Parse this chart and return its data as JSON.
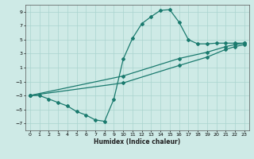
{
  "xlabel": "Humidex (Indice chaleur)",
  "background_color": "#ceeae6",
  "grid_color": "#aad4ce",
  "line_color": "#1a7a6e",
  "xlim": [
    -0.5,
    23.5
  ],
  "ylim": [
    -8,
    10
  ],
  "xticks": [
    0,
    1,
    2,
    3,
    4,
    5,
    6,
    7,
    8,
    9,
    10,
    11,
    12,
    13,
    14,
    15,
    16,
    17,
    18,
    19,
    20,
    21,
    22,
    23
  ],
  "yticks": [
    -7,
    -5,
    -3,
    -1,
    1,
    3,
    5,
    7,
    9
  ],
  "line1_x": [
    0,
    1,
    2,
    3,
    4,
    5,
    6,
    7,
    8,
    9,
    10,
    11,
    12,
    13,
    14,
    15,
    16,
    17,
    18,
    19,
    20,
    21,
    22,
    23
  ],
  "line1_y": [
    -3,
    -3,
    -3.5,
    -4.0,
    -4.5,
    -5.3,
    -5.8,
    -6.5,
    -6.7,
    -3.5,
    2.2,
    5.2,
    7.3,
    8.3,
    9.2,
    9.3,
    7.5,
    5.0,
    4.4,
    4.4,
    4.5,
    4.5,
    4.5,
    4.5
  ],
  "line2_x": [
    0,
    10,
    16,
    19,
    21,
    22,
    23
  ],
  "line2_y": [
    -3,
    -0.2,
    2.3,
    3.2,
    4.0,
    4.3,
    4.5
  ],
  "line3_x": [
    0,
    10,
    16,
    19,
    21,
    22,
    23
  ],
  "line3_y": [
    -3,
    -1.2,
    1.3,
    2.5,
    3.6,
    4.0,
    4.3
  ],
  "figsize": [
    3.2,
    2.0
  ],
  "dpi": 100
}
